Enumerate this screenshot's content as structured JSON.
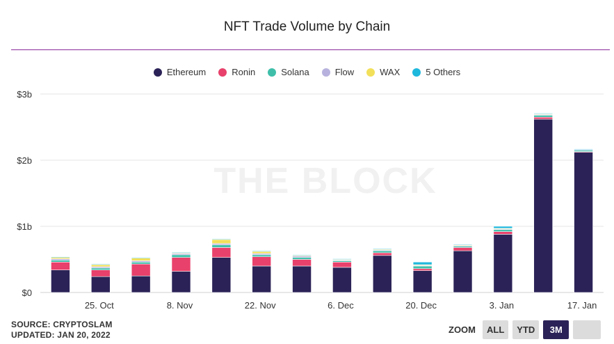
{
  "header": {
    "title": "NFT Trade Volume by Chain"
  },
  "watermark": "THE BLOCK",
  "footer": {
    "source": "SOURCE: CRYPTOSLAM",
    "updated": "UPDATED: JAN 20, 2022"
  },
  "zoom": {
    "label": "ZOOM",
    "buttons": [
      "ALL",
      "YTD",
      "3M",
      ""
    ],
    "active": "3M"
  },
  "chart_data": {
    "type": "bar",
    "stacked": true,
    "title": "NFT Trade Volume by Chain",
    "xlabel": "",
    "ylabel": "",
    "ylim": [
      0,
      3
    ],
    "y_unit": "billions USD",
    "y_ticks": [
      "$0",
      "$1b",
      "$2b",
      "$3b"
    ],
    "x_tick_labels": [
      "25. Oct",
      "8. Nov",
      "22. Nov",
      "6. Dec",
      "20. Dec",
      "3. Jan",
      "17. Jan"
    ],
    "categories": [
      "2021-10-18",
      "2021-10-25",
      "2021-11-01",
      "2021-11-08",
      "2021-11-15",
      "2021-11-22",
      "2021-11-29",
      "2021-12-06",
      "2021-12-13",
      "2021-12-20",
      "2021-12-27",
      "2022-01-03",
      "2022-01-10",
      "2022-01-17"
    ],
    "legend_position": "top-center",
    "grid": true,
    "series": [
      {
        "name": "Ethereum",
        "color": "#2b2357",
        "values": [
          0.34,
          0.24,
          0.25,
          0.32,
          0.53,
          0.4,
          0.4,
          0.38,
          0.56,
          0.33,
          0.63,
          0.88,
          2.62,
          2.12
        ]
      },
      {
        "name": "Ronin",
        "color": "#e8416b",
        "values": [
          0.12,
          0.1,
          0.18,
          0.21,
          0.15,
          0.14,
          0.1,
          0.08,
          0.04,
          0.03,
          0.05,
          0.04,
          0.03,
          0.01
        ]
      },
      {
        "name": "Solana",
        "color": "#3fbfaa",
        "values": [
          0.03,
          0.03,
          0.03,
          0.04,
          0.04,
          0.03,
          0.03,
          0.02,
          0.03,
          0.04,
          0.02,
          0.03,
          0.03,
          0.02
        ]
      },
      {
        "name": "Flow",
        "color": "#b7b2dd",
        "values": [
          0.02,
          0.02,
          0.02,
          0.02,
          0.02,
          0.02,
          0.02,
          0.01,
          0.01,
          0.01,
          0.01,
          0.01,
          0.01,
          0.01
        ]
      },
      {
        "name": "WAX",
        "color": "#f2e05a",
        "values": [
          0.02,
          0.03,
          0.04,
          0.01,
          0.06,
          0.03,
          0.01,
          0.01,
          0.01,
          0.01,
          0.01,
          0.01,
          0.01,
          0.0
        ]
      },
      {
        "name": "5 Others",
        "color": "#1fb8dd",
        "values": [
          0.01,
          0.01,
          0.01,
          0.01,
          0.01,
          0.01,
          0.01,
          0.01,
          0.01,
          0.04,
          0.01,
          0.03,
          0.01,
          0.01
        ]
      }
    ]
  }
}
